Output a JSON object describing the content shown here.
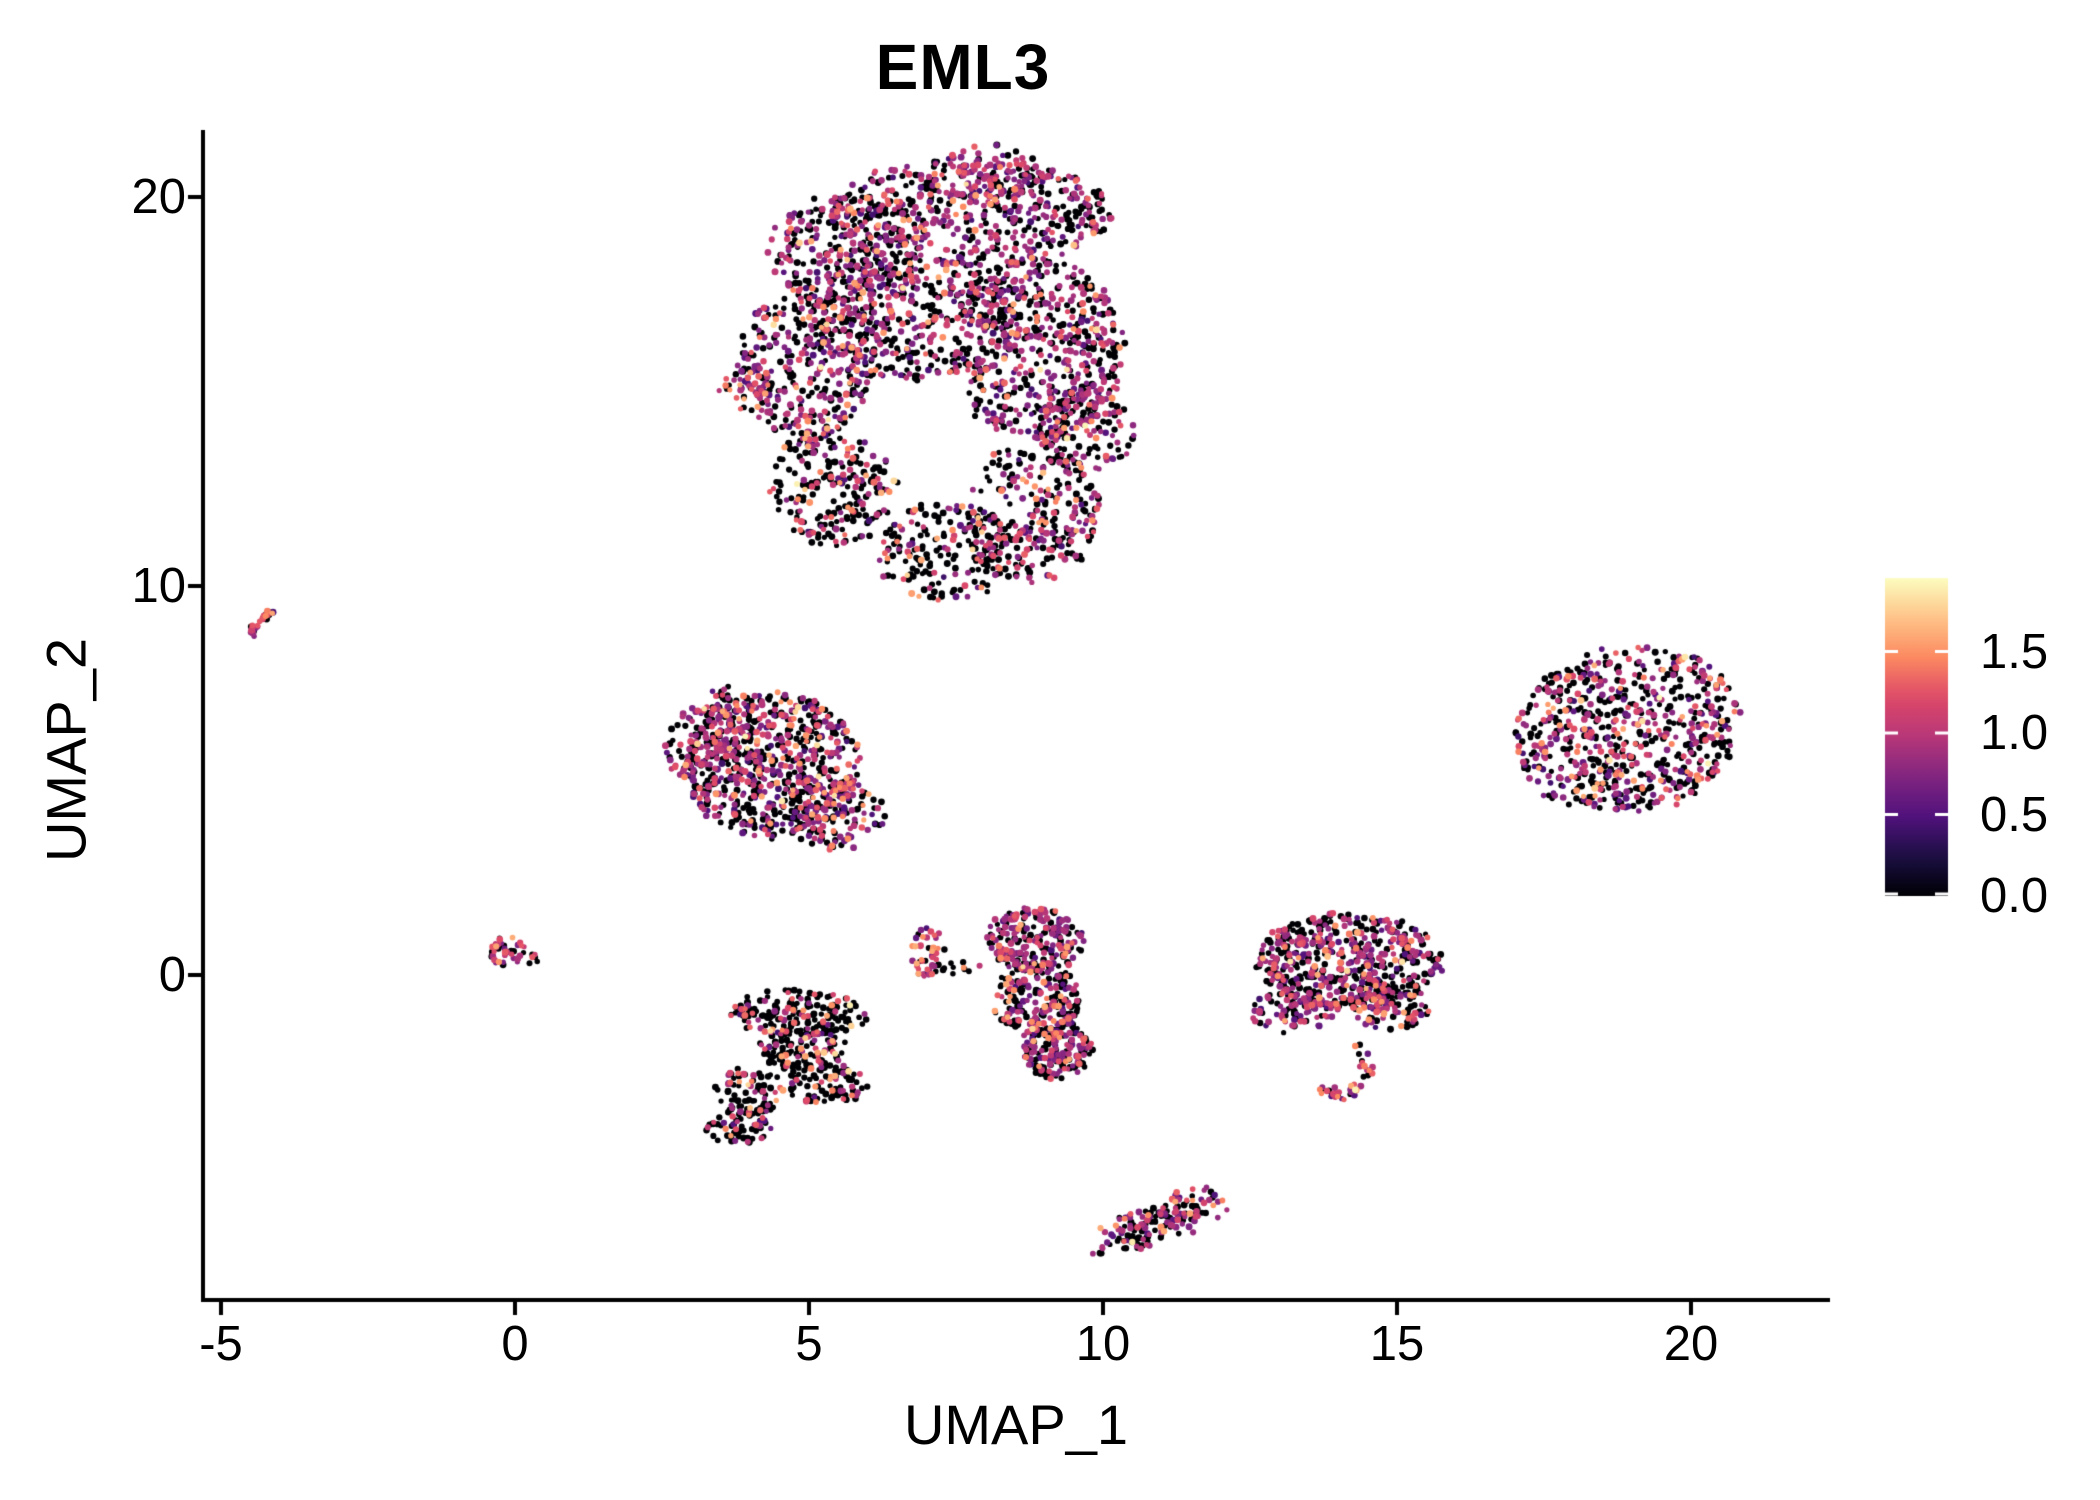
{
  "chart_data": {
    "type": "scatter",
    "title": "EML3",
    "xlabel": "UMAP_1",
    "ylabel": "UMAP_2",
    "xlim": [
      -5.3,
      22.4
    ],
    "ylim": [
      -8.3,
      22.3
    ],
    "grid": false,
    "x_ticks": [
      {
        "value": -5,
        "label": "-5"
      },
      {
        "value": 0,
        "label": "0"
      },
      {
        "value": 5,
        "label": "5"
      },
      {
        "value": 10,
        "label": "10"
      },
      {
        "value": 15,
        "label": "15"
      },
      {
        "value": 20,
        "label": "20"
      }
    ],
    "y_ticks": [
      {
        "value": 0,
        "label": "0"
      },
      {
        "value": 10,
        "label": "10"
      },
      {
        "value": 20,
        "label": "20"
      }
    ],
    "colorbar": {
      "position": "right",
      "vmin": 0.0,
      "vmax": 1.95,
      "ticks": [
        {
          "value": 0.0,
          "label": "0.0"
        },
        {
          "value": 0.5,
          "label": "0.5"
        },
        {
          "value": 1.0,
          "label": "1.0"
        },
        {
          "value": 1.5,
          "label": "1.5"
        }
      ],
      "palette_name": "magma",
      "colormap_rgb": [
        [
          0,
          0,
          4
        ],
        [
          28,
          16,
          68
        ],
        [
          81,
          18,
          124
        ],
        [
          129,
          37,
          129
        ],
        [
          183,
          55,
          121
        ],
        [
          222,
          73,
          104
        ],
        [
          252,
          137,
          97
        ],
        [
          254,
          196,
          136
        ],
        [
          252,
          253,
          191
        ]
      ]
    },
    "expression_bands": [
      [
        0,
        0
      ],
      [
        0.4,
        0.65
      ],
      [
        0.7,
        1.05
      ],
      [
        1.1,
        1.35
      ],
      [
        1.4,
        1.62
      ],
      [
        1.68,
        1.92
      ]
    ],
    "mixes": {
      "purpleRich": [
        0.4,
        0.09,
        0.38,
        0.08,
        0.045,
        0.005
      ],
      "mixed": [
        0.48,
        0.08,
        0.27,
        0.1,
        0.062,
        0.008
      ],
      "blackRich": [
        0.66,
        0.05,
        0.13,
        0.09,
        0.06,
        0.01
      ],
      "colorful": [
        0.26,
        0.08,
        0.3,
        0.22,
        0.13,
        0.01
      ],
      "sparseDark": [
        0.7,
        0.04,
        0.1,
        0.1,
        0.05,
        0.01
      ]
    },
    "clusters": [
      {
        "name": "main-upper-blob",
        "type": "blobs",
        "mixDefault": "mixed",
        "blobs": [
          {
            "cx": 7.7,
            "cy": 19.6,
            "rx": 2.45,
            "ry": 1.35,
            "n": 520,
            "mix": "purpleRich"
          },
          {
            "cx": 8.1,
            "cy": 20.6,
            "rx": 1.1,
            "ry": 0.7,
            "n": 90,
            "mix": "purpleRich"
          },
          {
            "cx": 5.6,
            "cy": 18.6,
            "rx": 1.3,
            "ry": 1.5,
            "n": 260,
            "mix": "purpleRich"
          },
          {
            "cx": 8.9,
            "cy": 16.1,
            "rx": 1.45,
            "ry": 2.4,
            "n": 560,
            "mix": "purpleRich"
          },
          {
            "cx": 6.7,
            "cy": 16.9,
            "rx": 1.9,
            "ry": 1.6,
            "n": 430,
            "mix": "mixed"
          },
          {
            "cx": 4.9,
            "cy": 15.6,
            "rx": 1.15,
            "ry": 1.9,
            "n": 300,
            "mix": "mixed"
          },
          {
            "cx": 4.0,
            "cy": 15.1,
            "rx": 0.5,
            "ry": 0.6,
            "n": 40,
            "mix": "colorful"
          },
          {
            "cx": 5.4,
            "cy": 12.6,
            "rx": 1.05,
            "ry": 1.6,
            "n": 235,
            "mix": "blackRich"
          },
          {
            "cx": 7.3,
            "cy": 10.9,
            "rx": 1.15,
            "ry": 1.3,
            "n": 190,
            "mix": "blackRich"
          },
          {
            "cx": 8.8,
            "cy": 11.9,
            "rx": 1.15,
            "ry": 1.8,
            "n": 270,
            "mix": "mixed"
          },
          {
            "cx": 9.7,
            "cy": 14.0,
            "rx": 0.8,
            "ry": 1.1,
            "n": 130,
            "mix": "purpleRich"
          }
        ],
        "gaps": [
          {
            "x1": 5.9,
            "y1": 13.9,
            "x2": 8.4,
            "y2": 12.0,
            "w": 0.3,
            "p": 0.85
          },
          {
            "x1": 7.0,
            "y1": 18.4,
            "x2": 7.9,
            "y2": 16.0,
            "w": 0.18,
            "p": 0.55
          }
        ]
      },
      {
        "name": "tiny-streak-upper-left",
        "type": "line",
        "pts": [
          [
            -4.55,
            8.72
          ],
          [
            -4.12,
            9.38
          ]
        ],
        "w": 0.07,
        "n": 30,
        "mix": "colorful"
      },
      {
        "name": "tiny-left-center",
        "type": "blobs",
        "blobs": [
          {
            "cx": -0.12,
            "cy": 0.62,
            "rx": 0.3,
            "ry": 0.4,
            "n": 38,
            "mix": "colorful"
          },
          {
            "cx": 0.28,
            "cy": 0.45,
            "rx": 0.15,
            "ry": 0.15,
            "n": 6,
            "mix": "blackRich"
          }
        ]
      },
      {
        "name": "mid-left-cluster",
        "type": "blobs",
        "blobs": [
          {
            "cx": 4.4,
            "cy": 5.4,
            "rx": 1.5,
            "ry": 1.9,
            "n": 640,
            "mix": "mixed"
          },
          {
            "cx": 3.3,
            "cy": 5.9,
            "rx": 0.75,
            "ry": 1.1,
            "n": 150,
            "mix": "purpleRich"
          },
          {
            "cx": 5.4,
            "cy": 4.1,
            "rx": 0.9,
            "ry": 0.9,
            "n": 150,
            "mix": "mixed"
          },
          {
            "cx": 3.5,
            "cy": 7.25,
            "rx": 0.18,
            "ry": 0.22,
            "n": 12,
            "mix": "mixed"
          }
        ]
      },
      {
        "name": "lower-left-s-cluster",
        "type": "blobs",
        "blobs": [
          {
            "cx": 4.8,
            "cy": -1.0,
            "rx": 1.15,
            "ry": 0.6,
            "n": 175,
            "mix": "sparseDark"
          },
          {
            "cx": 4.9,
            "cy": -1.9,
            "rx": 0.75,
            "ry": 0.55,
            "n": 120,
            "mix": "sparseDark"
          },
          {
            "cx": 5.3,
            "cy": -2.8,
            "rx": 0.7,
            "ry": 0.5,
            "n": 90,
            "mix": "sparseDark"
          },
          {
            "cx": 4.0,
            "cy": -3.0,
            "rx": 0.6,
            "ry": 0.6,
            "n": 80,
            "mix": "sparseDark"
          },
          {
            "cx": 3.8,
            "cy": -3.9,
            "rx": 0.55,
            "ry": 0.5,
            "n": 60,
            "mix": "sparseDark"
          }
        ]
      },
      {
        "name": "tiny-mid-cluster",
        "type": "blobs",
        "blobs": [
          {
            "cx": 7.0,
            "cy": 0.6,
            "rx": 0.3,
            "ry": 0.65,
            "n": 46,
            "mix": "colorful"
          },
          {
            "cx": 7.6,
            "cy": 0.15,
            "rx": 0.35,
            "ry": 0.25,
            "n": 10,
            "mix": "sparseDark"
          }
        ]
      },
      {
        "name": "mid-vertical-cluster",
        "type": "blobs",
        "blobs": [
          {
            "cx": 8.85,
            "cy": 0.9,
            "rx": 0.8,
            "ry": 0.85,
            "n": 225,
            "mix": "purpleRich"
          },
          {
            "cx": 8.9,
            "cy": -0.6,
            "rx": 0.75,
            "ry": 0.9,
            "n": 200,
            "mix": "mixed"
          },
          {
            "cx": 9.2,
            "cy": -1.9,
            "rx": 0.6,
            "ry": 0.8,
            "n": 180,
            "mix": "mixed"
          }
        ]
      },
      {
        "name": "bottom-small-cluster",
        "type": "line",
        "pts": [
          [
            10.15,
            -6.85
          ],
          [
            11.0,
            -6.35
          ],
          [
            11.8,
            -5.78
          ]
        ],
        "w": 0.38,
        "n": 175,
        "mix": "mixed"
      },
      {
        "name": "right-mid-cluster",
        "type": "blobs",
        "blobs": [
          {
            "cx": 14.2,
            "cy": 0.35,
            "rx": 1.6,
            "ry": 1.25,
            "n": 560,
            "mix": "mixed"
          },
          {
            "cx": 13.2,
            "cy": -0.9,
            "rx": 0.7,
            "ry": 0.6,
            "n": 90,
            "mix": "purpleRich"
          },
          {
            "cx": 14.9,
            "cy": -0.9,
            "rx": 0.6,
            "ry": 0.55,
            "n": 80,
            "mix": "mixed"
          }
        ]
      },
      {
        "name": "right-mid-hook",
        "type": "line",
        "pts": [
          [
            14.35,
            -1.75
          ],
          [
            14.55,
            -2.45
          ],
          [
            14.1,
            -3.1
          ],
          [
            13.6,
            -2.95
          ]
        ],
        "w": 0.12,
        "n": 42,
        "mix": "colorful"
      },
      {
        "name": "far-right-cluster",
        "type": "ellipse",
        "cx": 18.9,
        "cy": 6.3,
        "rx": 1.95,
        "ry": 2.15,
        "rotDeg": -8,
        "n": 680,
        "mix": "mixed"
      }
    ]
  },
  "accent_colors": {
    "axis": "#000000",
    "background": "#ffffff",
    "legend_tick": "#ffffff"
  }
}
